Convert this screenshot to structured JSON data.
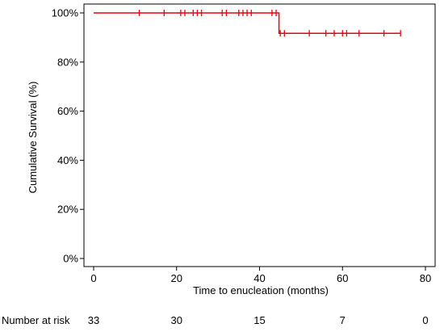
{
  "chart_data": {
    "type": "line",
    "title": "",
    "xlabel": "Time to enucleation (months)",
    "ylabel": "Cumulative Survival (%)",
    "xlim": [
      0,
      80
    ],
    "ylim": [
      0,
      100
    ],
    "x_ticks": [
      0,
      20,
      40,
      60,
      80
    ],
    "y_ticks": [
      0,
      20,
      40,
      60,
      80,
      100
    ],
    "y_tick_labels": [
      "0%",
      "20%",
      "40%",
      "60%",
      "80%",
      "100%"
    ],
    "x_tick_labels": [
      "0",
      "20",
      "40",
      "60",
      "80"
    ],
    "grid": false,
    "legend": "none",
    "series": [
      {
        "color": "#e8000b",
        "steps": [
          {
            "x": 0,
            "y": 100
          },
          {
            "x": 44.7,
            "y": 100
          },
          {
            "x": 44.7,
            "y": 91.7
          },
          {
            "x": 74,
            "y": 91.7
          }
        ],
        "censored": [
          {
            "x": 11,
            "y": 100
          },
          {
            "x": 17,
            "y": 100
          },
          {
            "x": 21,
            "y": 100
          },
          {
            "x": 22,
            "y": 100
          },
          {
            "x": 24,
            "y": 100
          },
          {
            "x": 25,
            "y": 100
          },
          {
            "x": 26,
            "y": 100
          },
          {
            "x": 31,
            "y": 100
          },
          {
            "x": 32,
            "y": 100
          },
          {
            "x": 35,
            "y": 100
          },
          {
            "x": 36,
            "y": 100
          },
          {
            "x": 37,
            "y": 100
          },
          {
            "x": 38,
            "y": 100
          },
          {
            "x": 43,
            "y": 100
          },
          {
            "x": 44,
            "y": 100
          },
          {
            "x": 45,
            "y": 91.7
          },
          {
            "x": 46,
            "y": 91.7
          },
          {
            "x": 52,
            "y": 91.7
          },
          {
            "x": 56,
            "y": 91.7
          },
          {
            "x": 58,
            "y": 91.7
          },
          {
            "x": 60,
            "y": 91.7
          },
          {
            "x": 61,
            "y": 91.7
          },
          {
            "x": 64,
            "y": 91.7
          },
          {
            "x": 70,
            "y": 91.7
          },
          {
            "x": 74,
            "y": 91.7
          }
        ]
      }
    ],
    "risk_table": {
      "label": "Number at risk",
      "times": [
        0,
        20,
        40,
        60,
        80
      ],
      "counts": [
        "33",
        "30",
        "15",
        "7",
        "0"
      ]
    }
  }
}
